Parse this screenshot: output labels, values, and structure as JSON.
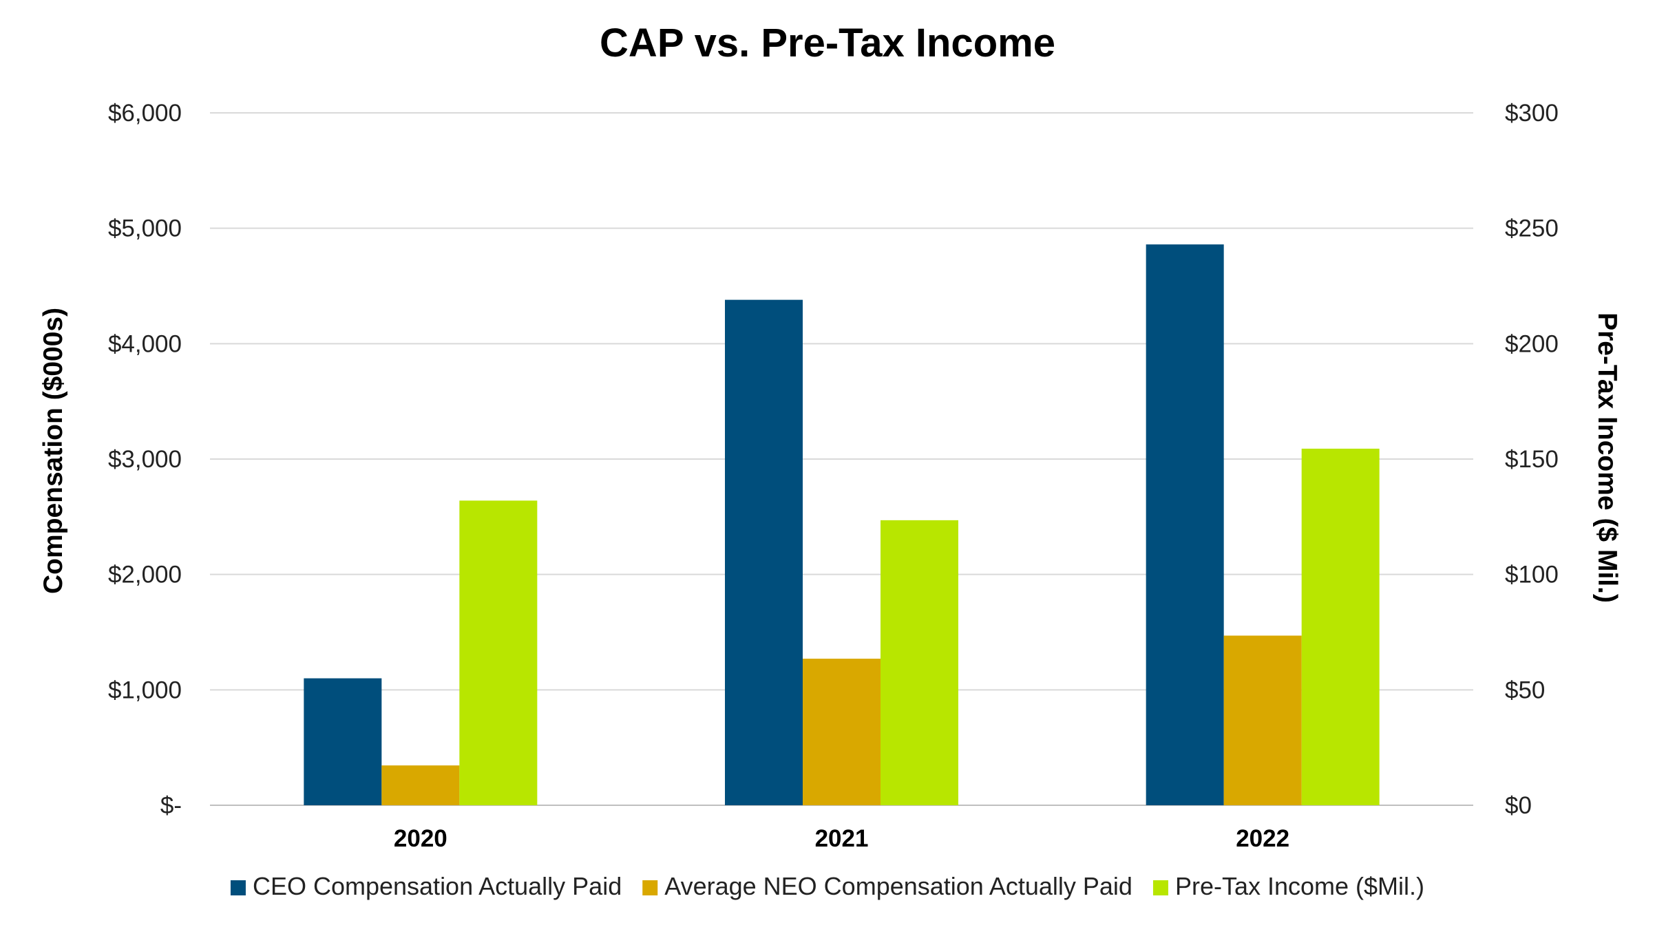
{
  "chart_data": {
    "type": "bar",
    "title": "CAP vs. Pre-Tax Income",
    "categories": [
      "2020",
      "2021",
      "2022"
    ],
    "series": [
      {
        "name": "CEO Compensation Actually Paid",
        "axis": "left",
        "color": "#004e7c",
        "values": [
          1100,
          4380,
          4860
        ]
      },
      {
        "name": "Average NEO Compensation Actually Paid",
        "axis": "left",
        "color": "#d9a800",
        "values": [
          345,
          1270,
          1470
        ]
      },
      {
        "name": "Pre-Tax Income ($Mil.)",
        "axis": "right",
        "color": "#b8e600",
        "values": [
          132,
          123.5,
          154.5
        ]
      }
    ],
    "ylabel": "Compensation ($000s)",
    "ylabel_right": "Pre-Tax Income ($ Mil.)",
    "ylim": [
      0,
      6000
    ],
    "ylim_right": [
      0,
      300
    ],
    "yticks": [
      "$-",
      "$1,000",
      "$2,000",
      "$3,000",
      "$4,000",
      "$5,000",
      "$6,000"
    ],
    "yticks_right": [
      "$0",
      "$50",
      "$100",
      "$150",
      "$200",
      "$250",
      "$300"
    ],
    "grid": true,
    "legend_position": "bottom"
  }
}
